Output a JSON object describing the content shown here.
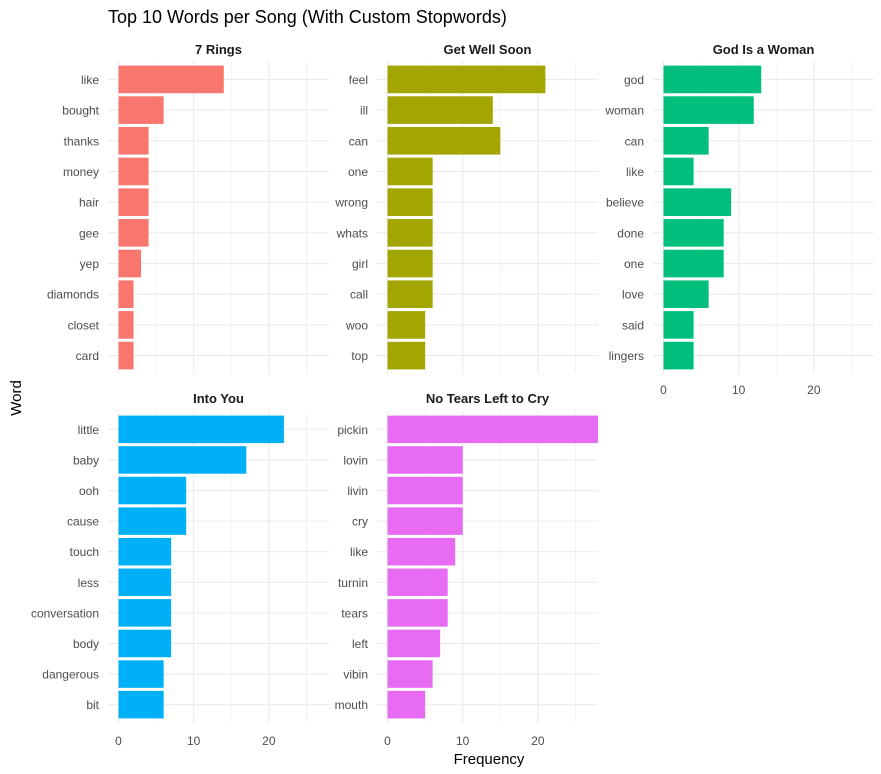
{
  "chart_data": {
    "type": "bar",
    "orientation": "horizontal",
    "title": "Top 10 Words per Song (With Custom Stopwords)",
    "xlabel": "Frequency",
    "ylabel": "Word",
    "xlim": [
      0,
      28
    ],
    "x_ticks": [
      "0",
      "10",
      "20"
    ],
    "grid": true,
    "legend": "none",
    "panels": [
      {
        "name": "7 Rings",
        "color": "#F8766D",
        "categories": [
          "like",
          "bought",
          "thanks",
          "money",
          "hair",
          "gee",
          "yep",
          "diamonds",
          "closet",
          "card"
        ],
        "values": [
          14,
          6,
          4,
          4,
          4,
          4,
          3,
          2,
          2,
          2
        ]
      },
      {
        "name": "Get Well Soon",
        "color": "#A3A500",
        "categories": [
          "feel",
          "ill",
          "can",
          "one",
          "wrong",
          "whats",
          "girl",
          "call",
          "woo",
          "top"
        ],
        "values": [
          21,
          14,
          15,
          6,
          6,
          6,
          6,
          6,
          5,
          5
        ]
      },
      {
        "name": "God Is a Woman",
        "color": "#00BF7D",
        "categories": [
          "god",
          "woman",
          "can",
          "like",
          "believe",
          "done",
          "one",
          "love",
          "said",
          "lingers"
        ],
        "values": [
          13,
          12,
          6,
          4,
          9,
          8,
          8,
          6,
          4,
          4
        ]
      },
      {
        "name": "Into You",
        "color": "#00B0F6",
        "categories": [
          "little",
          "baby",
          "ooh",
          "cause",
          "touch",
          "less",
          "conversation",
          "body",
          "dangerous",
          "bit"
        ],
        "values": [
          22,
          17,
          9,
          9,
          7,
          7,
          7,
          7,
          6,
          6
        ]
      },
      {
        "name": "No Tears Left to Cry",
        "color": "#E76BF3",
        "categories": [
          "pickin",
          "lovin",
          "livin",
          "cry",
          "like",
          "turnin",
          "tears",
          "left",
          "vibin",
          "mouth"
        ],
        "values": [
          28,
          10,
          10,
          10,
          9,
          8,
          8,
          7,
          6,
          5
        ]
      }
    ]
  }
}
